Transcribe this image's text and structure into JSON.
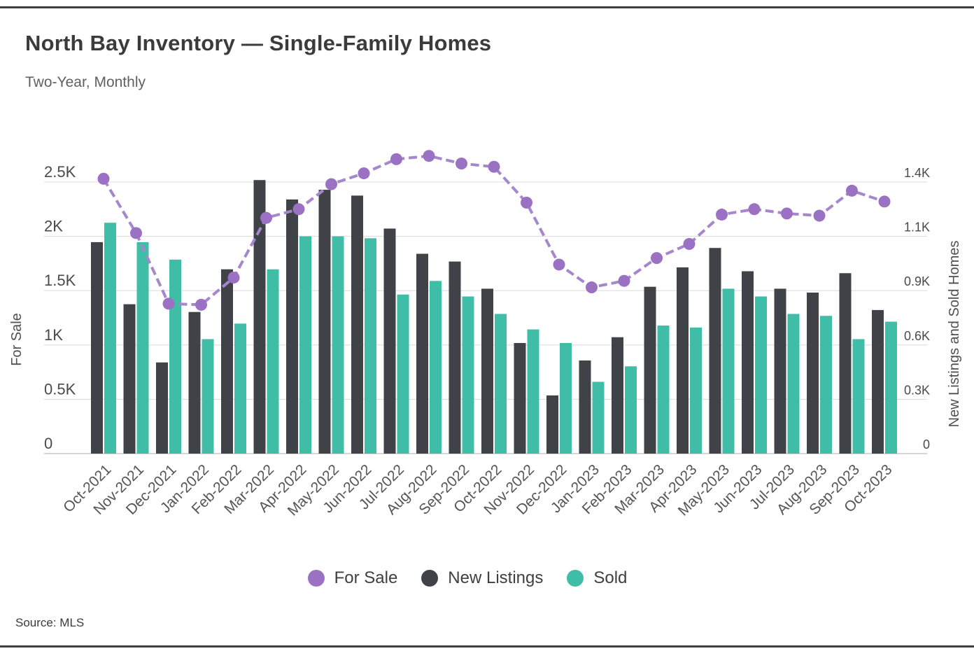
{
  "page": {
    "title": "North Bay Inventory — Single-Family Homes",
    "subtitle": "Two-Year, Monthly",
    "source": "Source: MLS"
  },
  "colors": {
    "for_sale_point": "#9b71c4",
    "for_sale_line": "#a587cd",
    "new_listings": "#3f4347",
    "sold": "#3fbda6",
    "grid": "#dedede",
    "baseline": "#c9c9c9",
    "tick_text": "#4a4a4a",
    "x_label_text": "#555555",
    "axis_title_text": "#4f4f4f"
  },
  "legend": {
    "items": [
      {
        "id": "for_sale",
        "label": "For Sale"
      },
      {
        "id": "new_listings",
        "label": "New Listings"
      },
      {
        "id": "sold",
        "label": "Sold"
      }
    ]
  },
  "chart_data": {
    "type": "bar+line",
    "title": "North Bay Inventory — Single-Family Homes",
    "subtitle": "Two-Year, Monthly",
    "grid": true,
    "legend_position": "bottom",
    "categories": [
      "Oct-2021",
      "Nov-2021",
      "Dec-2021",
      "Jan-2022",
      "Feb-2022",
      "Mar-2022",
      "Apr-2022",
      "May-2022",
      "Jun-2022",
      "Jul-2022",
      "Aug-2022",
      "Sep-2022",
      "Oct-2022",
      "Nov-2022",
      "Dec-2022",
      "Jan-2023",
      "Feb-2023",
      "Mar-2023",
      "Apr-2023",
      "May-2023",
      "Jun-2023",
      "Jul-2023",
      "Aug-2023",
      "Sep-2023",
      "Oct-2023"
    ],
    "bar_series": [
      {
        "name": "New Listings",
        "axis": "right",
        "color_key": "new_listings",
        "values": [
          1090,
          770,
          470,
          730,
          950,
          1410,
          1310,
          1360,
          1330,
          1160,
          1030,
          990,
          850,
          570,
          300,
          480,
          600,
          860,
          960,
          1060,
          940,
          850,
          830,
          930,
          740
        ]
      },
      {
        "name": "Sold",
        "axis": "right",
        "color_key": "sold",
        "values": [
          1190,
          1090,
          1000,
          590,
          670,
          950,
          1120,
          1120,
          1110,
          820,
          890,
          810,
          720,
          640,
          570,
          370,
          450,
          660,
          650,
          850,
          810,
          720,
          710,
          590,
          680
        ]
      }
    ],
    "line_series": [
      {
        "name": "For Sale",
        "axis": "left",
        "color_key": "for_sale_line",
        "point_color_key": "for_sale_point",
        "style": "dashed",
        "values": [
          2530,
          2030,
          1380,
          1370,
          1620,
          2170,
          2250,
          2480,
          2580,
          2710,
          2740,
          2670,
          2640,
          2310,
          1740,
          1530,
          1590,
          1800,
          1930,
          2200,
          2250,
          2210,
          2190,
          2420,
          2320
        ]
      }
    ],
    "left_axis": {
      "title": "For Sale",
      "range": [
        0,
        2500
      ],
      "tick_values": [
        0,
        500,
        1000,
        1500,
        2000,
        2500
      ],
      "tick_labels": [
        "0",
        "0.5K",
        "1K",
        "1.5K",
        "2K",
        "2.5K"
      ]
    },
    "right_axis": {
      "title": "New Listings and Sold Homes",
      "range": [
        0,
        1400
      ],
      "tick_values": [
        0,
        300,
        600,
        900,
        1100,
        1400
      ],
      "tick_labels": [
        "0",
        "0.3K",
        "0.6K",
        "0.9K",
        "1.1K",
        "1.4K"
      ],
      "ticks_share_gridlines_with_left_axis": true
    }
  }
}
